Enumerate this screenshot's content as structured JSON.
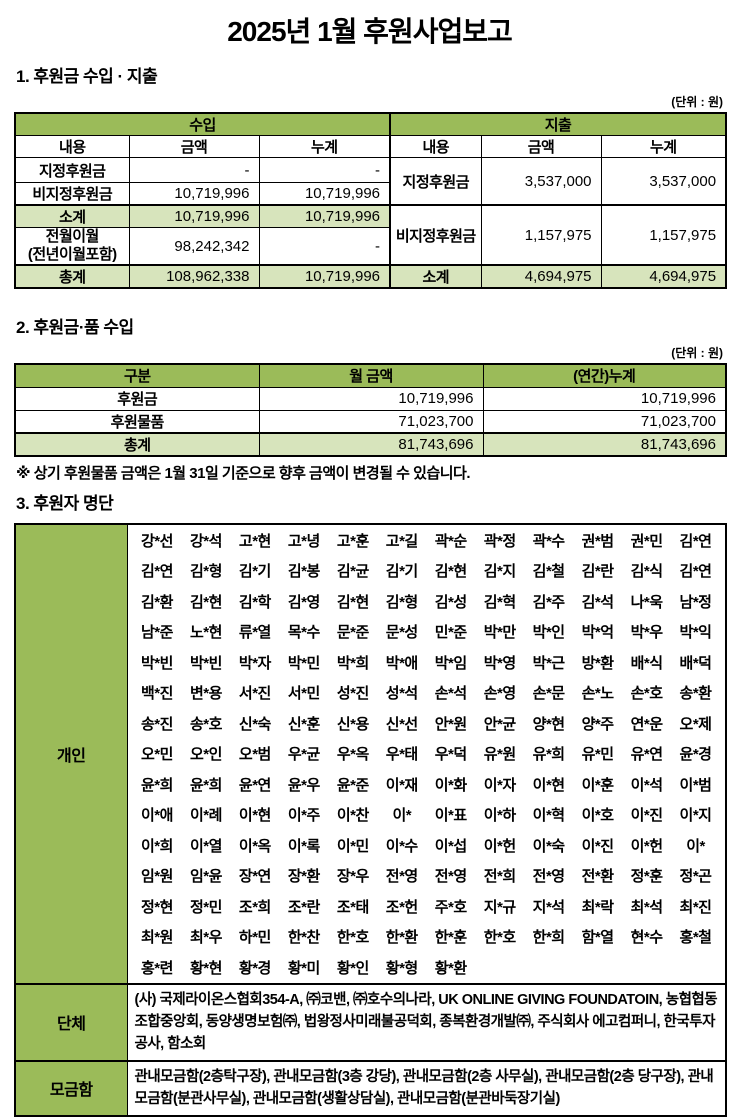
{
  "title": "2025년 1월 후원사업보고",
  "unit_label": "(단위 : 원)",
  "colors": {
    "header_green": "#9bbb59",
    "light_green": "#d7e4bc",
    "border": "#000000"
  },
  "section1": {
    "heading": "1. 후원금 수입 · 지출"
  },
  "table1": {
    "income_title": "수입",
    "expense_title": "지출",
    "subheaders": [
      "내용",
      "금액",
      "누계",
      "내용",
      "금액",
      "누계"
    ],
    "income": {
      "r1": {
        "label": "지정후원금",
        "amount": "-",
        "cum": "-"
      },
      "r2": {
        "label": "비지정후원금",
        "amount": "10,719,996",
        "cum": "10,719,996"
      },
      "subtotal": {
        "label": "소계",
        "amount": "10,719,996",
        "cum": "10,719,996"
      },
      "carryover": {
        "label": "전월이월",
        "label2": "(전년이월포함)",
        "amount": "98,242,342",
        "cum": "-"
      },
      "total": {
        "label": "총계",
        "amount": "108,962,338",
        "cum": "10,719,996"
      }
    },
    "expense": {
      "r1": {
        "label": "지정후원금",
        "amount": "3,537,000",
        "cum": "3,537,000"
      },
      "r2": {
        "label": "비지정후원금",
        "amount": "1,157,975",
        "cum": "1,157,975"
      },
      "subtotal": {
        "label": "소계",
        "amount": "4,694,975",
        "cum": "4,694,975"
      }
    }
  },
  "section2": {
    "heading": "2. 후원금·품 수입"
  },
  "table2": {
    "headers": [
      "구분",
      "월 금액",
      "(연간)누계"
    ],
    "rows": [
      {
        "label": "후원금",
        "month": "10,719,996",
        "cum": "10,719,996"
      },
      {
        "label": "후원물품",
        "month": "71,023,700",
        "cum": "71,023,700"
      }
    ],
    "total": {
      "label": "총계",
      "month": "81,743,696",
      "cum": "81,743,696"
    }
  },
  "note": "※ 상기 후원물품 금액은 1월 31일 기준으로 향후 금액이 변경될 수 있습니다.",
  "section3": {
    "heading": "3. 후원자 명단"
  },
  "donors": {
    "individual_label": "개인",
    "group_label": "단체",
    "box_label": "모금함",
    "individual_rows": [
      [
        "강*선",
        "강*석",
        "고*현",
        "고*녕",
        "고*훈",
        "고*길",
        "곽*순",
        "곽*정",
        "곽*수",
        "권*범",
        "권*민",
        "김*연"
      ],
      [
        "김*연",
        "김*형",
        "김*기",
        "김*봉",
        "김*균",
        "김*기",
        "김*현",
        "김*지",
        "김*철",
        "김*란",
        "김*식",
        "김*연"
      ],
      [
        "김*환",
        "김*현",
        "김*학",
        "김*영",
        "김*현",
        "김*형",
        "김*성",
        "김*혁",
        "김*주",
        "김*석",
        "나*욱",
        "남*정"
      ],
      [
        "남*준",
        "노*현",
        "류*열",
        "목*수",
        "문*준",
        "문*성",
        "민*준",
        "박*만",
        "박*인",
        "박*억",
        "박*우",
        "박*익"
      ],
      [
        "박*빈",
        "박*빈",
        "박*자",
        "박*민",
        "박*희",
        "박*애",
        "박*임",
        "박*영",
        "박*근",
        "방*환",
        "배*식",
        "배*덕"
      ],
      [
        "백*진",
        "변*용",
        "서*진",
        "서*민",
        "성*진",
        "성*석",
        "손*석",
        "손*영",
        "손*문",
        "손*노",
        "손*호",
        "송*환"
      ],
      [
        "송*진",
        "송*호",
        "신*숙",
        "신*훈",
        "신*용",
        "신*선",
        "안*원",
        "안*균",
        "양*현",
        "양*주",
        "연*운",
        "오*제"
      ],
      [
        "오*민",
        "오*인",
        "오*범",
        "우*균",
        "우*옥",
        "우*태",
        "우*덕",
        "유*원",
        "유*희",
        "유*민",
        "유*연",
        "윤*경"
      ],
      [
        "윤*희",
        "윤*희",
        "윤*연",
        "윤*우",
        "윤*준",
        "이*재",
        "이*화",
        "이*자",
        "이*현",
        "이*훈",
        "이*석",
        "이*범"
      ],
      [
        "이*애",
        "이*례",
        "이*현",
        "이*주",
        "이*찬",
        "이*",
        "이*표",
        "이*하",
        "이*혁",
        "이*호",
        "이*진",
        "이*지"
      ],
      [
        "이*희",
        "이*열",
        "이*옥",
        "이*록",
        "이*민",
        "이*수",
        "이*섭",
        "이*헌",
        "이*숙",
        "이*진",
        "이*헌",
        "이*"
      ],
      [
        "임*원",
        "임*윤",
        "장*연",
        "장*환",
        "장*우",
        "전*영",
        "전*영",
        "전*희",
        "전*영",
        "전*환",
        "정*훈",
        "정*곤"
      ],
      [
        "정*현",
        "정*민",
        "조*희",
        "조*란",
        "조*태",
        "조*헌",
        "주*호",
        "지*규",
        "지*석",
        "최*락",
        "최*석",
        "최*진"
      ],
      [
        "최*원",
        "최*우",
        "하*민",
        "한*찬",
        "한*호",
        "한*환",
        "한*훈",
        "한*호",
        "한*희",
        "함*열",
        "현*수",
        "홍*철"
      ],
      [
        "홍*련",
        "황*현",
        "황*경",
        "황*미",
        "황*인",
        "황*형",
        "황*환"
      ]
    ],
    "groups_text": "(사) 국제라이온스협회354-A, ㈜코밴, ㈜호수의나라, UK ONLINE GIVING FOUNDATOIN, 농협협동조합중앙회, 동양생명보험㈜, 법왕정사미래불공덕회, 종복환경개발㈜, 주식회사 에고컴퍼니, 한국투자공사, 함소회",
    "boxes_text": "관내모금함(2층탁구장), 관내모금함(3층 강당), 관내모금함(2층 사무실), 관내모금함(2층 당구장), 관내모금함(분관사무실), 관내모금함(생활상담실), 관내모금함(분관바둑장기실)"
  }
}
